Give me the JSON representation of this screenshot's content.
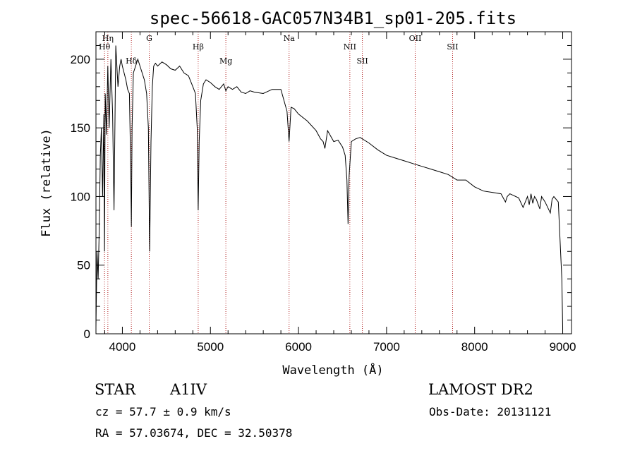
{
  "chart_data": {
    "type": "line",
    "title": "spec-56618-GAC057N34B1_sp01-205.fits",
    "xlabel": "Wavelength (Å)",
    "ylabel": "Flux (relative)",
    "xlim": [
      3700,
      9100
    ],
    "ylim": [
      0,
      220
    ],
    "x_ticks": [
      4000,
      5000,
      6000,
      7000,
      8000,
      9000
    ],
    "y_ticks": [
      0,
      50,
      100,
      150,
      200
    ],
    "grid": false,
    "line_color": "#000000",
    "marker_color": "#b22222",
    "spectral_lines": [
      {
        "label": "Hη",
        "x": 3835
      },
      {
        "label": "Hθ",
        "x": 3797
      },
      {
        "label": "Hδ",
        "x": 4102
      },
      {
        "label": "G",
        "x": 4305
      },
      {
        "label": "Hβ",
        "x": 4861
      },
      {
        "label": "Mg",
        "x": 5175
      },
      {
        "label": "Na",
        "x": 5893
      },
      {
        "label": "NII",
        "x": 6583
      },
      {
        "label": "SII",
        "x": 6725
      },
      {
        "label": "OII",
        "x": 7325
      },
      {
        "label": "SII",
        "x": 7750
      }
    ],
    "series": [
      {
        "x": [
          3700,
          3712,
          3725,
          3737,
          3750,
          3762,
          3775,
          3790,
          3797,
          3805,
          3820,
          3835,
          3850,
          3870,
          3889,
          3905,
          3925,
          3950,
          3970,
          3985,
          4000,
          4020,
          4040,
          4060,
          4080,
          4095,
          4102,
          4110,
          4125,
          4150,
          4175,
          4200,
          4225,
          4250,
          4275,
          4295,
          4310,
          4325,
          4340,
          4355,
          4375,
          4400,
          4450,
          4500,
          4550,
          4600,
          4650,
          4700,
          4750,
          4800,
          4830,
          4850,
          4861,
          4872,
          4890,
          4920,
          4950,
          5000,
          5050,
          5100,
          5150,
          5175,
          5200,
          5250,
          5300,
          5350,
          5400,
          5450,
          5500,
          5600,
          5700,
          5800,
          5870,
          5893,
          5915,
          5950,
          6000,
          6100,
          6200,
          6250,
          6280,
          6300,
          6330,
          6400,
          6450,
          6500,
          6530,
          6550,
          6563,
          6575,
          6600,
          6650,
          6700,
          6800,
          6900,
          7000,
          7100,
          7200,
          7300,
          7400,
          7500,
          7600,
          7700,
          7800,
          7900,
          8000,
          8100,
          8200,
          8300,
          8350,
          8370,
          8400,
          8500,
          8550,
          8600,
          8620,
          8640,
          8660,
          8680,
          8700,
          8740,
          8760,
          8800,
          8860,
          8880,
          8900,
          8950,
          8990,
          9000
        ],
        "y": [
          5,
          60,
          40,
          75,
          130,
          150,
          100,
          160,
          60,
          175,
          145,
          195,
          150,
          200,
          160,
          90,
          210,
          180,
          195,
          200,
          195,
          190,
          185,
          178,
          175,
          120,
          78,
          150,
          190,
          195,
          200,
          195,
          190,
          185,
          175,
          150,
          60,
          140,
          180,
          195,
          197,
          195,
          198,
          196,
          193,
          192,
          195,
          190,
          188,
          180,
          175,
          150,
          90,
          140,
          170,
          182,
          185,
          183,
          180,
          178,
          182,
          177,
          180,
          178,
          180,
          176,
          175,
          177,
          176,
          175,
          178,
          178,
          162,
          140,
          165,
          164,
          160,
          155,
          148,
          142,
          140,
          135,
          148,
          140,
          141,
          136,
          130,
          112,
          80,
          115,
          140,
          142,
          143,
          139,
          134,
          130,
          128,
          126,
          124,
          122,
          120,
          118,
          116,
          112,
          112,
          107,
          104,
          103,
          102,
          96,
          100,
          102,
          99,
          92,
          100,
          94,
          102,
          95,
          100,
          98,
          91,
          100,
          96,
          88,
          98,
          100,
          96,
          40,
          5
        ]
      }
    ]
  },
  "info": {
    "object_class": "STAR",
    "subclass": "A1IV",
    "survey": "LAMOST DR2",
    "cz": "cz = 57.7 ± 0.9 km/s",
    "obs_date": "Obs-Date: 20131121",
    "coords": "RA =  57.03674, DEC =  32.50378"
  }
}
